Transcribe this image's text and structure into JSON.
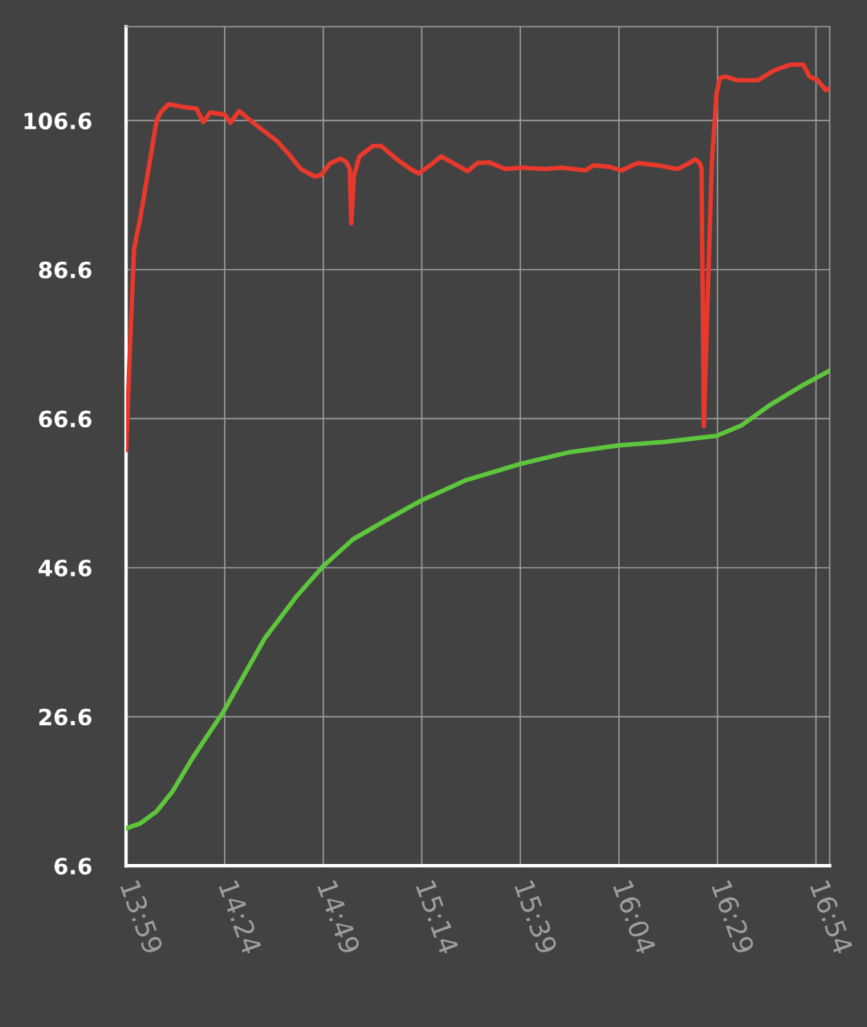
{
  "chart_data": {
    "type": "line",
    "xlim": [
      13.983,
      16.958
    ],
    "ylim": [
      6.6,
      119.2
    ],
    "xticks": [
      {
        "value": 13.9833,
        "label": "13:59"
      },
      {
        "value": 14.4,
        "label": "14:24"
      },
      {
        "value": 14.8167,
        "label": "14:49"
      },
      {
        "value": 15.2333,
        "label": "15:14"
      },
      {
        "value": 15.65,
        "label": "15:39"
      },
      {
        "value": 16.0667,
        "label": "16:04"
      },
      {
        "value": 16.4833,
        "label": "16:29"
      },
      {
        "value": 16.9,
        "label": "16:54"
      }
    ],
    "yticks": [
      6.6,
      26.6,
      46.6,
      66.6,
      86.6,
      106.6
    ],
    "grid": true,
    "series": [
      {
        "color": "#e8392c",
        "x": [
          13.983,
          14.004,
          14.017,
          14.044,
          14.078,
          14.112,
          14.129,
          14.163,
          14.231,
          14.281,
          14.309,
          14.339,
          14.4,
          14.424,
          14.461,
          14.502,
          14.553,
          14.62,
          14.671,
          14.722,
          14.78,
          14.807,
          14.847,
          14.891,
          14.915,
          14.929,
          14.935,
          14.946,
          14.969,
          15.027,
          15.061,
          15.128,
          15.186,
          15.22,
          15.264,
          15.315,
          15.366,
          15.427,
          15.467,
          15.518,
          15.586,
          15.654,
          15.755,
          15.823,
          15.925,
          15.959,
          16.026,
          16.077,
          16.145,
          16.23,
          16.314,
          16.365,
          16.389,
          16.409,
          16.416,
          16.426,
          16.443,
          16.46,
          16.48,
          16.494,
          16.518,
          16.568,
          16.653,
          16.721,
          16.789,
          16.846,
          16.873,
          16.907,
          16.941,
          16.955
        ],
        "values": [
          62.4,
          79.7,
          89.4,
          93.7,
          100.1,
          106.6,
          107.7,
          108.8,
          108.4,
          108.2,
          106.4,
          107.7,
          107.4,
          106.3,
          107.9,
          106.8,
          105.5,
          103.9,
          102.1,
          100.1,
          99.1,
          99.3,
          100.9,
          101.5,
          101.0,
          100.1,
          92.8,
          99.1,
          101.8,
          103.2,
          103.2,
          101.4,
          100.1,
          99.5,
          100.5,
          101.8,
          100.9,
          99.8,
          100.9,
          101.0,
          100.1,
          100.3,
          100.1,
          100.3,
          99.9,
          100.6,
          100.4,
          99.9,
          100.9,
          100.6,
          100.1,
          100.9,
          101.4,
          100.9,
          100.1,
          65.6,
          84.0,
          101.2,
          110.4,
          112.3,
          112.5,
          112.0,
          112.0,
          113.3,
          114.1,
          114.1,
          112.5,
          112.0,
          110.7,
          110.9
        ]
      },
      {
        "color": "#5ec63c",
        "x": [
          13.983,
          14.044,
          14.112,
          14.18,
          14.265,
          14.397,
          14.569,
          14.705,
          14.813,
          14.942,
          15.078,
          15.23,
          15.416,
          15.647,
          15.857,
          16.064,
          16.263,
          16.48,
          16.585,
          16.704,
          16.839,
          16.955
        ],
        "values": [
          11.6,
          12.3,
          13.9,
          16.6,
          21.1,
          27.4,
          37.1,
          42.8,
          46.7,
          50.4,
          52.9,
          55.6,
          58.3,
          60.5,
          62.1,
          63.0,
          63.5,
          64.3,
          65.7,
          68.4,
          71.0,
          73.0
        ]
      }
    ]
  }
}
